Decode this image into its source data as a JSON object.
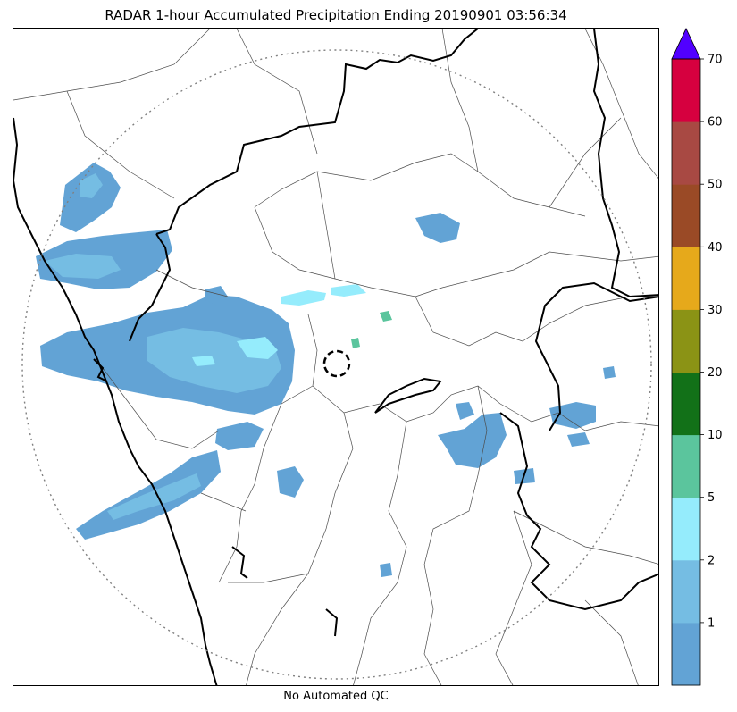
{
  "title": "RADAR 1-hour Accumulated Precipitation Ending 20190901 03:56:34",
  "footer": "No Automated QC",
  "colorbar": {
    "tick_labels": [
      "1",
      "2",
      "5",
      "10",
      "20",
      "30",
      "40",
      "50",
      "60",
      "70"
    ],
    "extend": "max",
    "colors": [
      "#62a3d5",
      "#75bde3",
      "#95ecfc",
      "#5bc59d",
      "#127118",
      "#8b9315",
      "#e6a91b",
      "#9a4a26",
      "#a84943",
      "#d6003f"
    ],
    "extend_color": "#5100ff"
  },
  "map": {
    "range_ring_color": "#808080",
    "radar_marker_color": "#000000",
    "border_color": "#000000",
    "district_color": "#4d4d4d"
  }
}
